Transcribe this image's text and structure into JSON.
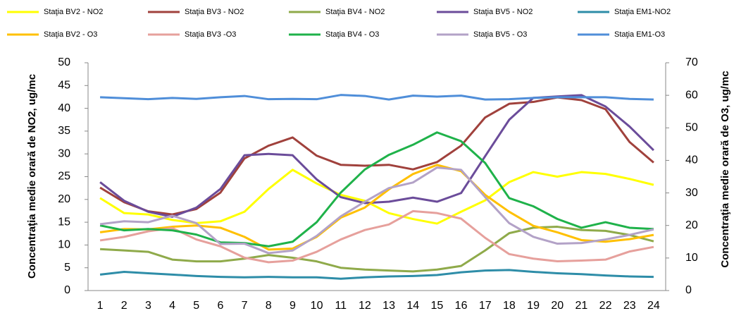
{
  "chart_data": {
    "type": "line",
    "y_label": "Concentraţia medie orară de NO2, ug/mc",
    "y2_label": "Concentraţia medie orară de O3, ug/mc",
    "categories": [
      "1",
      "2",
      "3",
      "4",
      "5",
      "6",
      "7",
      "8",
      "9",
      "10",
      "11",
      "12",
      "13",
      "14",
      "15",
      "16",
      "17",
      "18",
      "19",
      "20",
      "21",
      "22",
      "23",
      "24"
    ],
    "ylim": [
      0,
      50
    ],
    "yticks": [
      0,
      5,
      10,
      15,
      20,
      25,
      30,
      35,
      40,
      45,
      50
    ],
    "y2lim": [
      0,
      70
    ],
    "y2ticks": [
      0,
      10,
      20,
      30,
      40,
      50,
      60,
      70
    ],
    "grid": false,
    "series": [
      {
        "name": "Staţia BV2 - NO2",
        "color": "#ffff00",
        "values": [
          20.3,
          17,
          16.7,
          15.5,
          14.8,
          15.2,
          17.3,
          22.3,
          26.5,
          23.5,
          21,
          19.7,
          17,
          15.7,
          14.7,
          17.3,
          19.8,
          23.8,
          26,
          25,
          26,
          25.6,
          24.5,
          23.2
        ]
      },
      {
        "name": "Staţia BV3 - NO2",
        "color": "#a0413c",
        "values": [
          22.6,
          19.4,
          17.4,
          16.7,
          17.9,
          21.5,
          29,
          31.8,
          33.6,
          29.6,
          27.6,
          27.4,
          27.6,
          26.6,
          28.2,
          31.8,
          38,
          41,
          41.4,
          42.4,
          41.8,
          39.8,
          32.6,
          28.1
        ]
      },
      {
        "name": "Staţia BV4 - NO2",
        "color": "#8faa4a",
        "values": [
          9.1,
          8.8,
          8.5,
          6.8,
          6.4,
          6.4,
          7,
          7.8,
          7.2,
          6.4,
          5,
          4.6,
          4.4,
          4.2,
          4.6,
          5.4,
          8.8,
          12.6,
          13.8,
          14,
          13.3,
          13.1,
          12.2,
          10.8
        ]
      },
      {
        "name": "Staţia BV5 - NO2",
        "color": "#6b4c9a",
        "values": [
          23.8,
          19.7,
          17.3,
          16.2,
          18.2,
          22.3,
          29.7,
          30,
          29.7,
          24.4,
          20.5,
          19.2,
          19.5,
          20.4,
          19.5,
          21.4,
          29.5,
          37.5,
          42.3,
          42.6,
          42.9,
          40.4,
          36,
          30.8
        ]
      },
      {
        "name": "Staţia EM1-NO2",
        "color": "#2e8da8",
        "values": [
          3.5,
          4.1,
          3.8,
          3.5,
          3.2,
          3,
          2.9,
          3,
          2.9,
          2.9,
          2.6,
          2.9,
          3.1,
          3.2,
          3.4,
          4,
          4.4,
          4.5,
          4.1,
          3.8,
          3.6,
          3.3,
          3.1,
          3
        ]
      },
      {
        "name": "Staţia BV2 - O3",
        "color": "#ffc000",
        "axis": "y2",
        "values": [
          17.9,
          18.9,
          18.8,
          19.6,
          20,
          19.3,
          16.5,
          12.6,
          12.9,
          16.5,
          22.4,
          25.5,
          31.1,
          35.8,
          38.6,
          36.7,
          29.4,
          24.2,
          19.9,
          17.9,
          15.5,
          15,
          15.8,
          17.1
        ]
      },
      {
        "name": "Staţia BV3 -O3",
        "color": "#e6a09c",
        "axis": "y2",
        "values": [
          15.4,
          16.5,
          18.2,
          19.2,
          15.7,
          13.6,
          10.1,
          8.7,
          9.2,
          11.9,
          15.7,
          18.6,
          20.3,
          24.4,
          23.8,
          22.1,
          16.2,
          11.2,
          9.8,
          9,
          9.2,
          9.5,
          12,
          13.4
        ]
      },
      {
        "name": "Staţia BV4 - O3",
        "color": "#1fb24a",
        "axis": "y2",
        "values": [
          20,
          18.5,
          18.9,
          18.5,
          17.2,
          14.8,
          14.6,
          13.6,
          15,
          21,
          30.1,
          37.2,
          41.7,
          44.8,
          48.6,
          45.9,
          39.2,
          28.4,
          25.9,
          22,
          19.3,
          21,
          19.3,
          18.9
        ]
      },
      {
        "name": "Staţia BV5 - O3",
        "color": "#b3a2c7",
        "axis": "y2",
        "values": [
          20.4,
          21.3,
          21,
          23,
          20.7,
          14.3,
          14.4,
          11.5,
          12.3,
          16.8,
          22.8,
          27.3,
          31.5,
          33.2,
          37.8,
          37.1,
          28.7,
          20.7,
          16.5,
          14.4,
          14.6,
          15.7,
          17.1,
          18.8
        ]
      },
      {
        "name": "Staţia EM1-O3",
        "color": "#4f8ed9",
        "axis": "y2",
        "values": [
          59.4,
          59.1,
          58.8,
          59.2,
          58.9,
          59.4,
          59.8,
          58.8,
          58.9,
          58.8,
          60.1,
          59.8,
          58.7,
          59.9,
          59.6,
          59.9,
          58.7,
          58.8,
          59.2,
          59.4,
          59.4,
          59.4,
          58.9,
          58.7
        ]
      }
    ]
  }
}
